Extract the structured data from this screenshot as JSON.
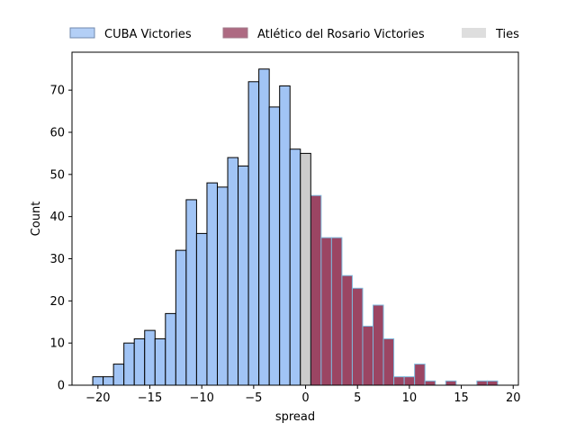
{
  "chart_data": {
    "type": "bar",
    "title": "",
    "xlabel": "spread",
    "ylabel": "Count",
    "xlim": [
      -22.5,
      20.5
    ],
    "ylim": [
      0,
      79
    ],
    "bin_width": 1,
    "xticks": [
      -20,
      -15,
      -10,
      -5,
      0,
      5,
      10,
      15,
      20
    ],
    "yticks": [
      0,
      10,
      20,
      30,
      40,
      50,
      60,
      70
    ],
    "grid": false,
    "legend_position": "top",
    "colors": {
      "cuba": "#a1c4f5",
      "cuba_edge": "#000000",
      "rosario": "#9b4563",
      "rosario_edge": "#7fb9dc",
      "ties": "#cccccc",
      "ties_edge": "#000000"
    },
    "series": [
      {
        "name": "CUBA Victories",
        "key": "cuba",
        "x": [
          -20,
          -19,
          -18,
          -17,
          -16,
          -15,
          -14,
          -13,
          -12,
          -11,
          -10,
          -9,
          -8,
          -7,
          -6,
          -5,
          -4,
          -3,
          -2,
          -1
        ],
        "values": [
          2,
          2,
          5,
          10,
          11,
          13,
          11,
          17,
          32,
          44,
          36,
          48,
          47,
          54,
          52,
          72,
          75,
          66,
          71,
          56
        ]
      },
      {
        "name": "Atlético del Rosario Victories",
        "key": "rosario",
        "x": [
          1,
          2,
          3,
          4,
          5,
          6,
          7,
          8,
          9,
          10,
          11,
          12,
          14,
          17,
          18
        ],
        "values": [
          45,
          35,
          35,
          26,
          23,
          14,
          19,
          11,
          2,
          2,
          5,
          1,
          1,
          1,
          1
        ]
      },
      {
        "name": "Ties",
        "key": "ties",
        "x": [
          0
        ],
        "values": [
          55
        ]
      }
    ]
  }
}
